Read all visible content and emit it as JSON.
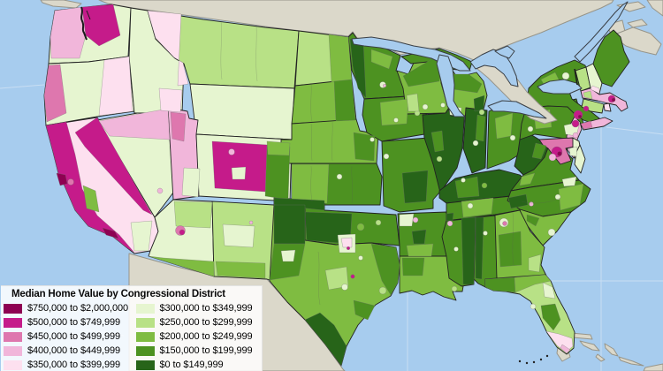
{
  "legend": {
    "title": "Median Home Value by Congressional District",
    "items": [
      {
        "id": "b750",
        "label": "$750,000 to $2,000,000",
        "color": "#8E0152",
        "col": 1
      },
      {
        "id": "b500",
        "label": "$500,000 to $749,999",
        "color": "#C51B8A",
        "col": 1
      },
      {
        "id": "b450",
        "label": "$450,000 to $499,999",
        "color": "#DE77AE",
        "col": 1
      },
      {
        "id": "b400",
        "label": "$400,000 to $449,999",
        "color": "#F1B6DA",
        "col": 1
      },
      {
        "id": "b350",
        "label": "$350,000 to $399,999",
        "color": "#FDE0EF",
        "col": 1
      },
      {
        "id": "b300",
        "label": "$300,000 to $349,999",
        "color": "#E6F5D0",
        "col": 2
      },
      {
        "id": "b250",
        "label": "$250,000 to $299,999",
        "color": "#B8E186",
        "col": 2
      },
      {
        "id": "b200",
        "label": "$200,000 to $249,999",
        "color": "#7FBC41",
        "col": 2
      },
      {
        "id": "b150",
        "label": "$150,000 to $199,999",
        "color": "#4D9221",
        "col": 2
      },
      {
        "id": "b0",
        "label": "$0 to $149,999",
        "color": "#276419",
        "col": 2
      }
    ]
  },
  "map": {
    "water_color": "#A7CCEE",
    "foreign_land_color": "#DBD8CA",
    "regions": [
      {
        "id": "WA",
        "name": "Washington",
        "bucket": "b300"
      },
      {
        "id": "OR",
        "name": "Oregon",
        "bucket": "b300"
      },
      {
        "id": "CA",
        "name": "California",
        "bucket": "b350"
      },
      {
        "id": "NV",
        "name": "Nevada",
        "bucket": "b300"
      },
      {
        "id": "ID",
        "name": "Idaho",
        "bucket": "b300"
      },
      {
        "id": "MT",
        "name": "Montana",
        "bucket": "b250"
      },
      {
        "id": "WY",
        "name": "Wyoming",
        "bucket": "b300"
      },
      {
        "id": "UT",
        "name": "Utah",
        "bucket": "b400"
      },
      {
        "id": "CO",
        "name": "Colorado",
        "bucket": "b300"
      },
      {
        "id": "AZ",
        "name": "Arizona",
        "bucket": "b300"
      },
      {
        "id": "NM",
        "name": "New Mexico",
        "bucket": "b250"
      },
      {
        "id": "ND",
        "name": "North Dakota",
        "bucket": "b250"
      },
      {
        "id": "SD",
        "name": "South Dakota",
        "bucket": "b200"
      },
      {
        "id": "NE",
        "name": "Nebraska",
        "bucket": "b200"
      },
      {
        "id": "KS",
        "name": "Kansas",
        "bucket": "b150"
      },
      {
        "id": "OK",
        "name": "Oklahoma",
        "bucket": "b150"
      },
      {
        "id": "TX",
        "name": "Texas",
        "bucket": "b200"
      },
      {
        "id": "MN",
        "name": "Minnesota",
        "bucket": "b150"
      },
      {
        "id": "IA",
        "name": "Iowa",
        "bucket": "b150"
      },
      {
        "id": "MO",
        "name": "Missouri",
        "bucket": "b150"
      },
      {
        "id": "AR",
        "name": "Arkansas",
        "bucket": "b150"
      },
      {
        "id": "LA",
        "name": "Louisiana",
        "bucket": "b200"
      },
      {
        "id": "WI",
        "name": "Wisconsin",
        "bucket": "b200"
      },
      {
        "id": "IL",
        "name": "Illinois",
        "bucket": "b0"
      },
      {
        "id": "MIU",
        "name": "Michigan Upper Peninsula",
        "bucket": "b150"
      },
      {
        "id": "MI",
        "name": "Michigan",
        "bucket": "b200"
      },
      {
        "id": "IN",
        "name": "Indiana",
        "bucket": "b0"
      },
      {
        "id": "OH",
        "name": "Ohio",
        "bucket": "b150"
      },
      {
        "id": "KY",
        "name": "Kentucky",
        "bucket": "b0"
      },
      {
        "id": "TN",
        "name": "Tennessee",
        "bucket": "b150"
      },
      {
        "id": "WV",
        "name": "West Virginia",
        "bucket": "b0"
      },
      {
        "id": "VA",
        "name": "Virginia",
        "bucket": "b150"
      },
      {
        "id": "NC",
        "name": "North Carolina",
        "bucket": "b150"
      },
      {
        "id": "SC",
        "name": "South Carolina",
        "bucket": "b200"
      },
      {
        "id": "GA",
        "name": "Georgia",
        "bucket": "b200"
      },
      {
        "id": "AL",
        "name": "Alabama",
        "bucket": "b150"
      },
      {
        "id": "MS",
        "name": "Mississippi",
        "bucket": "b150"
      },
      {
        "id": "FL",
        "name": "Florida",
        "bucket": "b250"
      },
      {
        "id": "PA",
        "name": "Pennsylvania",
        "bucket": "b150"
      },
      {
        "id": "NY",
        "name": "New York",
        "bucket": "b150"
      },
      {
        "id": "LI",
        "name": "Long Island",
        "bucket": "b400"
      },
      {
        "id": "NJ",
        "name": "New Jersey",
        "bucket": "b400"
      },
      {
        "id": "MD",
        "name": "Maryland",
        "bucket": "b450"
      },
      {
        "id": "DE",
        "name": "Delaware",
        "bucket": "b300"
      },
      {
        "id": "DMV",
        "name": "Delmarva Eastern Shore",
        "bucket": "b300"
      },
      {
        "id": "CT",
        "name": "Connecticut",
        "bucket": "b250"
      },
      {
        "id": "RI",
        "name": "Rhode Island",
        "bucket": "b350"
      },
      {
        "id": "MA",
        "name": "Massachusetts",
        "bucket": "b400"
      },
      {
        "id": "VT",
        "name": "Vermont",
        "bucket": "b250"
      },
      {
        "id": "NH",
        "name": "New Hampshire",
        "bucket": "b300"
      },
      {
        "id": "ME",
        "name": "Maine",
        "bucket": "b150"
      }
    ],
    "patches": {
      "wa-west": "b400",
      "seattle": "b500",
      "or-coast": "b450",
      "or-east": "b350",
      "ca-coast": "b500",
      "ca-sierra": "b500",
      "sf-bay": "b750",
      "la-metro": "b750",
      "sf-suburb": "b450",
      "ca-valley": "b200",
      "ca-south": "b300",
      "nv-north": "b400",
      "vegas": "b400",
      "mt-west": "b350",
      "id-se": "b350",
      "ut-slc": "b450",
      "ut-se": "b300",
      "co-west": "b500",
      "co-pink": "b400",
      "co-white": "b300",
      "co-east": "b150",
      "co-ne": "b200",
      "az-north": "b250",
      "phx-ring": "b450",
      "phoenix": "b500",
      "az-south": "b200",
      "nm-center": "b300",
      "nm-south": "b200",
      "santa-fe": "b400",
      "nd-east": "b200",
      "sd-east": "b150",
      "ne-east": "b150",
      "omaha": "b300",
      "ks-west": "b200",
      "ks-spot": "b300",
      "ok-pan": "b0",
      "ok-west": "b0",
      "okc": "b200",
      "tulsa": "b250",
      "tx-panhandle": "b0",
      "tx-west": "b150",
      "tx-permian": "b300",
      "dfw-cream": "b300",
      "dfw-pink": "b350",
      "dfw-dot": "b500",
      "tx-east": "b150",
      "tx-south": "b0",
      "tx-hill": "b250",
      "tx-coast": "b150",
      "austin": "b500",
      "san-antonio": "b300",
      "houston": "b250",
      "waco": "b300",
      "mn-west": "b0",
      "mn-north": "b200",
      "minneapolis": "b300",
      "msp-dot": "b400",
      "ia-center": "b200",
      "des-moines": "b300",
      "ia-east": "b250",
      "mo-south": "b0",
      "stl": "b250",
      "kc": "b300",
      "wi-north": "b150",
      "wi-sw": "b250",
      "madison": "b300",
      "milwaukee": "b300",
      "chicago": "b300",
      "chicago-dot": "b450",
      "il-center": "b150",
      "mi-north": "b150",
      "mi-thumb": "b0",
      "detroit": "b250",
      "in-east": "b150",
      "indianapolis": "b300",
      "oh-center": "b200",
      "columbus": "b300",
      "cleveland": "b250",
      "ky-center": "b150",
      "louisville": "b300",
      "lexington": "b200",
      "tn-mid": "b200",
      "memphis": "b0",
      "nashville": "b300",
      "tn-east": "b0",
      "ms-east": "b0",
      "ms-north": "b400",
      "jackson": "b300",
      "al-west": "b0",
      "birmingham": "b300",
      "ga-southwest": "b150",
      "ga-southeast": "b250",
      "atlanta-ring": "b300",
      "atlanta": "b450",
      "sc-north": "b150",
      "sc-coast": "b300",
      "nc-east": "b200",
      "charlotte": "b400",
      "raleigh": "b300",
      "va-west": "b200",
      "va-nova": "b500",
      "nova-pink": "b400",
      "dc": "b750",
      "va-se": "b300",
      "wv-east": "b150",
      "ar-nw": "b300",
      "ar-pink": "b400",
      "little-rock": "b0",
      "ar-south": "b200",
      "la-north": "b150",
      "new-orleans": "b250",
      "fl-panhandle": "b150",
      "fl-panhandle2": "b200",
      "fl-ne": "b300",
      "fl-center": "b150",
      "tampa": "b300",
      "fl-south": "b350",
      "fl-tip": "b400",
      "pa-center": "b200",
      "pa-se": "b300",
      "philadelphia": "b400",
      "pittsburgh": "b300",
      "ny-central": "b200",
      "ny-spot": "b300",
      "nyc": "b500",
      "nyc-dot": "b750",
      "li-west": "b450",
      "nj-north": "b500",
      "nj-south": "b300",
      "boston": "b500",
      "boston-dot": "b750",
      "ma-west": "b250",
      "ct-sw": "b500",
      "nh-south": "b350"
    }
  }
}
